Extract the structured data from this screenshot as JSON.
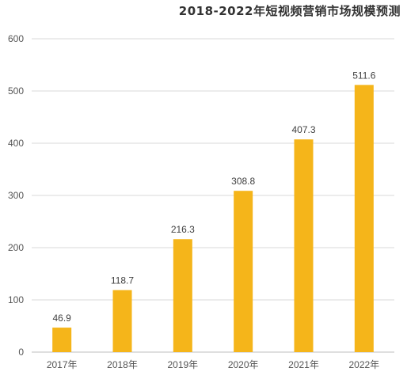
{
  "chart_data": {
    "type": "bar",
    "title": "2018-2022年短视频营销市场规模预测",
    "xlabel": "",
    "ylabel": "",
    "categories": [
      "2017年",
      "2018年",
      "2019年",
      "2020年",
      "2021年",
      "2022年"
    ],
    "values": [
      46.9,
      118.7,
      216.3,
      308.8,
      407.3,
      511.6
    ],
    "data_labels": [
      "46.9",
      "118.7",
      "216.3",
      "308.8",
      "407.3",
      "511.6"
    ],
    "ylim": [
      0,
      600
    ],
    "yticks": [
      0,
      100,
      200,
      300,
      400,
      500,
      600
    ],
    "grid": true,
    "legend": "none",
    "colors": {
      "bar": "#F5B51A",
      "grid": "#D9D9D9",
      "axis": "#BFBFBF"
    }
  }
}
